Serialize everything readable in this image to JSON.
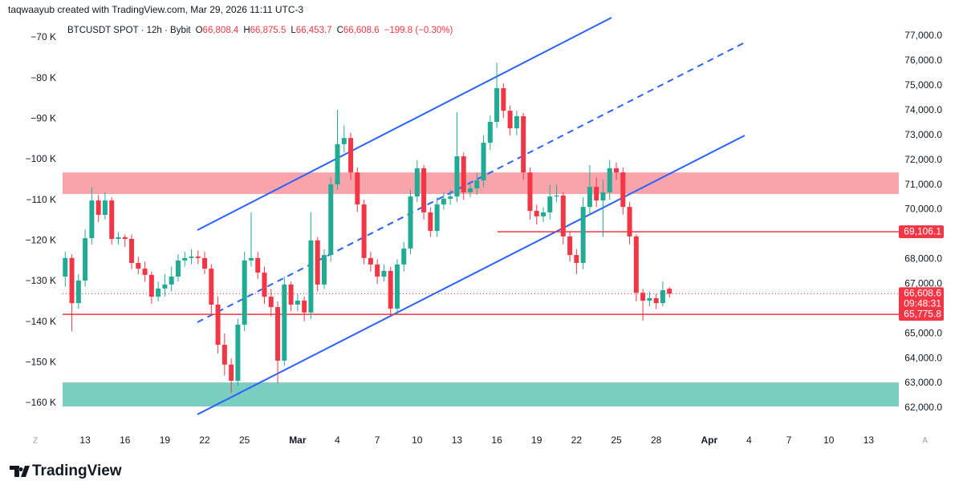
{
  "header": {
    "credit": "taqwaayub created with TradingView.com, Mar 29, 2026 11:11 UTC-3"
  },
  "legend": {
    "symbol": "BTCUSDT SPOT · 12h · Bybit",
    "items": [
      {
        "key": "O",
        "value": "66,808.4"
      },
      {
        "key": "H",
        "value": "66,875.5"
      },
      {
        "key": "L",
        "value": "66,453.7"
      },
      {
        "key": "C",
        "value": "66,608.6"
      }
    ],
    "change": "−199.8 (−0.30%)"
  },
  "footer": {
    "brand": "TradingView"
  },
  "chart_data": {
    "type": "candlestick",
    "up_color": "#22ab94",
    "down_color": "#f23645",
    "grid": false,
    "open": [
      67300,
      68050,
      66230,
      67140,
      68850,
      70370,
      69790,
      70370,
      68820,
      68890,
      68820,
      67850,
      67620,
      67370,
      66490,
      66820,
      66980,
      67300,
      67950,
      68050,
      68110,
      68050,
      67620,
      66170,
      64550,
      63750,
      63100,
      65360,
      67950,
      68050,
      67460,
      66490,
      66070,
      63910,
      66980,
      66170,
      66330,
      65850,
      68760,
      66980,
      68170,
      71020,
      72640,
      72890,
      71500,
      70210,
      68050,
      67790,
      67300,
      67530,
      66010,
      67790,
      68430,
      70530,
      71670,
      69890,
      69140,
      70210,
      70440,
      70530,
      72150,
      70700,
      70860,
      71180,
      72700,
      73540,
      74900,
      73990,
      73280,
      73770,
      71500,
      69950,
      69730,
      69890,
      70530,
      70570,
      68920,
      68170,
      67850,
      70110,
      70920,
      70370,
      70700,
      71670,
      71500,
      70110,
      68920,
      66650,
      66330,
      66430,
      66230,
      66808.4
    ],
    "high": [
      68300,
      68200,
      67400,
      69200,
      70900,
      70600,
      70700,
      70500,
      69100,
      69000,
      69000,
      68100,
      67900,
      67500,
      67100,
      67400,
      67700,
      68200,
      68300,
      68400,
      68350,
      68300,
      67800,
      66500,
      65000,
      64000,
      65600,
      68300,
      69890,
      68300,
      67700,
      66800,
      66300,
      67300,
      67100,
      66600,
      66500,
      69900,
      68900,
      68400,
      71300,
      74030,
      73400,
      73100,
      71700,
      70400,
      68300,
      68000,
      67800,
      67700,
      68000,
      68700,
      70800,
      72000,
      71800,
      70100,
      70500,
      70700,
      70800,
      73930,
      72300,
      71100,
      71500,
      73000,
      73800,
      75930,
      75100,
      74200,
      74000,
      73900,
      71700,
      70200,
      70100,
      71000,
      71000,
      70700,
      69100,
      68400,
      70500,
      71800,
      71300,
      71200,
      72000,
      71900,
      71700,
      70300,
      69000,
      66800,
      66700,
      66600,
      67100,
      66875.5
    ],
    "low": [
      66900,
      65100,
      66000,
      66900,
      68600,
      69500,
      69600,
      68600,
      68600,
      68500,
      67600,
      67400,
      67100,
      66200,
      66300,
      66500,
      66700,
      67100,
      67700,
      67800,
      67800,
      67400,
      65800,
      64200,
      63300,
      62610,
      62900,
      65100,
      67700,
      67200,
      66200,
      65700,
      63000,
      63700,
      65900,
      65900,
      65500,
      65600,
      66700,
      66800,
      67900,
      70800,
      72300,
      71200,
      69900,
      67800,
      67500,
      67000,
      67100,
      65700,
      65800,
      67500,
      68200,
      70300,
      69600,
      68900,
      68900,
      70000,
      70200,
      70300,
      70400,
      70500,
      70600,
      70900,
      72400,
      73300,
      73700,
      73000,
      73000,
      71200,
      69600,
      69400,
      69500,
      69600,
      70300,
      68600,
      67900,
      67400,
      67600,
      69800,
      70100,
      68900,
      70400,
      71200,
      69800,
      68600,
      66300,
      65520,
      66100,
      66000,
      66100,
      66453.7
    ],
    "close": [
      68050,
      66230,
      67140,
      68850,
      70370,
      69790,
      70370,
      68820,
      68890,
      68820,
      67850,
      67620,
      67370,
      66490,
      66820,
      66980,
      67300,
      67950,
      68050,
      68110,
      68050,
      67620,
      66170,
      64550,
      63750,
      63100,
      65360,
      67950,
      68050,
      67460,
      66490,
      66070,
      63910,
      66980,
      66170,
      66330,
      65850,
      68760,
      66980,
      68170,
      71020,
      72640,
      72890,
      71500,
      70210,
      68050,
      67790,
      67300,
      67530,
      66010,
      67790,
      68430,
      70530,
      71670,
      69890,
      69140,
      70210,
      70440,
      70530,
      72150,
      70700,
      70860,
      71180,
      72700,
      73540,
      74900,
      73990,
      73280,
      73770,
      71500,
      69950,
      69730,
      69890,
      70530,
      70570,
      68920,
      68170,
      67850,
      70110,
      70920,
      70370,
      70700,
      71670,
      71500,
      70110,
      68920,
      66650,
      66330,
      66430,
      66230,
      66750,
      66608.6
    ],
    "ylim": [
      61320,
      77680
    ],
    "yticks": [
      {
        "value": 62000,
        "label": "62,000.0"
      },
      {
        "value": 63000,
        "label": "63,000.0"
      },
      {
        "value": 64000,
        "label": "64,000.0"
      },
      {
        "value": 65000,
        "label": "65,000.0"
      },
      {
        "value": 66000,
        "label": "66,000.0"
      },
      {
        "value": 67000,
        "label": "67,000.0"
      },
      {
        "value": 68000,
        "label": "68,000.0"
      },
      {
        "value": 69000,
        "label": "69,000.0"
      },
      {
        "value": 70000,
        "label": "70,000.0"
      },
      {
        "value": 71000,
        "label": "71,000.0"
      },
      {
        "value": 72000,
        "label": "72,000.0"
      },
      {
        "value": 73000,
        "label": "73,000.0"
      },
      {
        "value": 74000,
        "label": "74,000.0"
      },
      {
        "value": 75000,
        "label": "75,000.0"
      },
      {
        "value": 76000,
        "label": "76,000.0"
      },
      {
        "value": 77000,
        "label": "77,000.0"
      }
    ],
    "y2lim": [
      -165330,
      -65460
    ],
    "y2ticks": [
      {
        "value": -70000,
        "label": "−70 K"
      },
      {
        "value": -80000,
        "label": "−80 K"
      },
      {
        "value": -90000,
        "label": "−90 K"
      },
      {
        "value": -100000,
        "label": "−100 K"
      },
      {
        "value": -110000,
        "label": "−110 K"
      },
      {
        "value": -120000,
        "label": "−120 K"
      },
      {
        "value": -130000,
        "label": "−130 K"
      },
      {
        "value": -140000,
        "label": "−140 K"
      },
      {
        "value": -150000,
        "label": "−150 K"
      },
      {
        "value": -160000,
        "label": "−160 K"
      }
    ],
    "xlim": [
      -6.2,
      130.5
    ],
    "xticks": [
      {
        "value": -4.5,
        "label": "Z"
      },
      {
        "value": 3,
        "label": "13"
      },
      {
        "value": 9,
        "label": "16"
      },
      {
        "value": 15,
        "label": "19"
      },
      {
        "value": 21,
        "label": "22"
      },
      {
        "value": 27,
        "label": "25"
      },
      {
        "value": 35,
        "label": "Mar"
      },
      {
        "value": 41,
        "label": "4"
      },
      {
        "value": 47,
        "label": "7"
      },
      {
        "value": 53,
        "label": "10"
      },
      {
        "value": 59,
        "label": "13"
      },
      {
        "value": 65,
        "label": "16"
      },
      {
        "value": 71,
        "label": "19"
      },
      {
        "value": 77,
        "label": "22"
      },
      {
        "value": 83,
        "label": "25"
      },
      {
        "value": 89,
        "label": "28"
      },
      {
        "value": 97,
        "label": "Apr"
      },
      {
        "value": 103,
        "label": "4"
      },
      {
        "value": 109,
        "label": "7"
      },
      {
        "value": 115,
        "label": "10"
      },
      {
        "value": 121,
        "label": "13"
      },
      {
        "value": 129.5,
        "label": "A"
      }
    ],
    "zones": [
      {
        "from": 70630,
        "to": 71500,
        "color": "rgba(242,54,69,0.45)"
      },
      {
        "from": 62060,
        "to": 63030,
        "color": "rgba(34,171,148,0.6)"
      }
    ],
    "price_lines": [
      {
        "value": 69106.1,
        "label": "69,106.1"
      },
      {
        "value": 66608.6,
        "label": "66,608.6",
        "countdown": "09:48:31"
      },
      {
        "value": 65775.8,
        "label": "65,775.8"
      }
    ],
    "price_line_color": "#f23645"
  }
}
